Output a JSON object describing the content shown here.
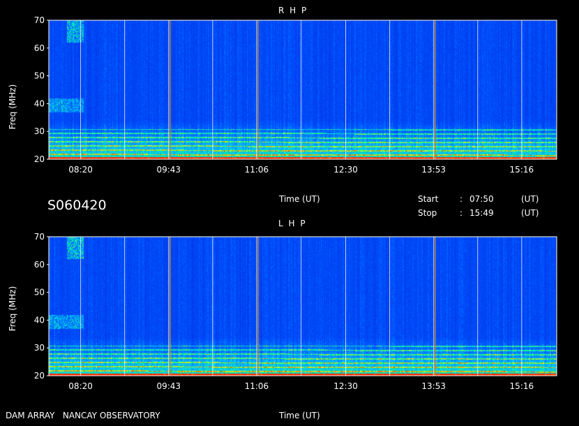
{
  "chart_data": [
    {
      "type": "heatmap",
      "title": "R H P",
      "xlabel": "Time (UT)",
      "ylabel": "Freq (MHz)",
      "ylim": [
        20,
        70
      ],
      "yticks": [
        20,
        30,
        40,
        50,
        60,
        70
      ],
      "xtick_labels": [
        "08:20",
        "09:43",
        "11:06",
        "12:30",
        "13:53",
        "15:16"
      ],
      "xlim": [
        "07:50",
        "15:49"
      ],
      "colormap": [
        "#0018c8",
        "#0050ff",
        "#00c0ff",
        "#00ff80",
        "#ffff00",
        "#ff2000"
      ],
      "vertical_event_lines": [
        "09:43",
        "11:06",
        "13:53"
      ]
    },
    {
      "type": "heatmap",
      "title": "L H P",
      "xlabel": "Time (UT)",
      "ylabel": "Freq (MHz)",
      "ylim": [
        20,
        70
      ],
      "yticks": [
        20,
        30,
        40,
        50,
        60,
        70
      ],
      "xtick_labels": [
        "08:20",
        "09:43",
        "11:06",
        "12:30",
        "13:53",
        "15:16"
      ],
      "xlim": [
        "07:50",
        "15:49"
      ],
      "colormap": [
        "#0018c8",
        "#0050ff",
        "#00c0ff",
        "#00ff80",
        "#ffff00",
        "#ff2000"
      ],
      "vertical_event_lines": [
        "09:43",
        "11:06",
        "13:53"
      ]
    }
  ],
  "labels": {
    "rhp_title": "R H P",
    "lhp_title": "L H P",
    "freq_label": "Freq (MHz)",
    "time_label": "Time (UT)",
    "date_code": "S060420",
    "start_label": "Start",
    "start_colon": ":",
    "start_time": "07:50",
    "start_unit": "(UT)",
    "stop_label": "Stop",
    "stop_colon": ":",
    "stop_time": "15:49",
    "stop_unit": "(UT)",
    "footer": "DAM ARRAY   NANCAY OBSERVATORY"
  }
}
